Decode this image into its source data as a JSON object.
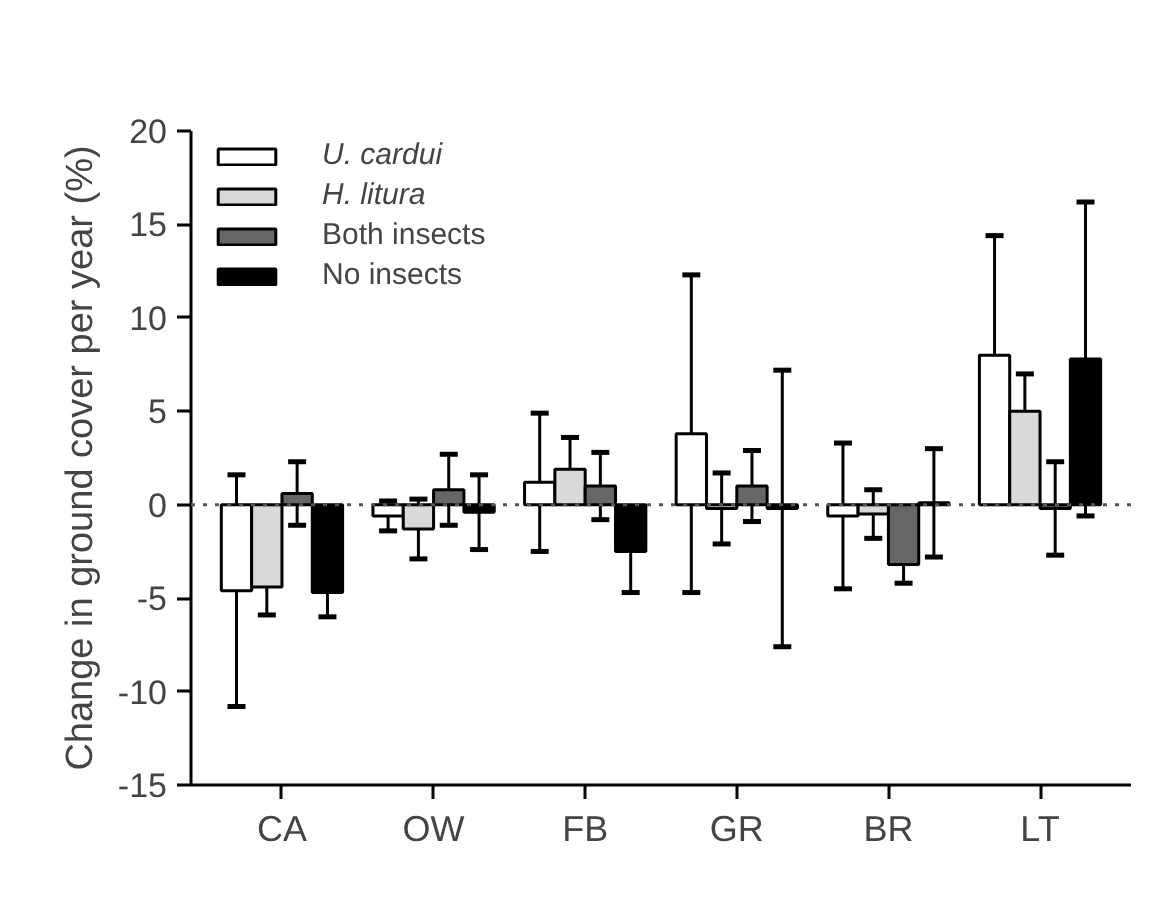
{
  "chart_data": {
    "type": "bar",
    "ylabel": "Change in ground cover per year (%)",
    "categories": [
      "CA",
      "OW",
      "FB",
      "GR",
      "BR",
      "LT"
    ],
    "series": [
      {
        "name": "U. cardui",
        "color": "#ffffff",
        "values": [
          -4.6,
          -0.6,
          1.2,
          3.8,
          -0.6,
          8.0
        ],
        "errors": [
          6.2,
          0.8,
          3.7,
          8.5,
          3.9,
          6.4
        ]
      },
      {
        "name": "H. litura",
        "color": "#d9d9d9",
        "values": [
          -4.4,
          -1.3,
          1.9,
          -0.2,
          -0.5,
          5.0
        ],
        "errors": [
          1.5,
          1.6,
          1.7,
          1.9,
          1.3,
          2.0
        ]
      },
      {
        "name": "Both insects",
        "color": "#666666",
        "values": [
          0.6,
          0.8,
          1.0,
          1.0,
          -3.2,
          -0.2
        ],
        "errors": [
          1.7,
          1.9,
          1.8,
          1.9,
          1.0,
          2.5
        ]
      },
      {
        "name": "No insects",
        "color": "#000000",
        "values": [
          -4.7,
          -0.4,
          -2.5,
          -0.2,
          0.1,
          7.8
        ],
        "errors": [
          1.3,
          2.0,
          2.2,
          7.4,
          2.9,
          8.4
        ]
      }
    ],
    "ylim": [
      -15,
      20
    ],
    "yticks": [
      -15,
      -10,
      -5,
      0,
      5,
      10,
      15,
      20
    ],
    "ref_lines": [
      {
        "axis": "y",
        "value": 0,
        "line_style": "dotted"
      }
    ],
    "grid": false,
    "legend": "top left"
  }
}
